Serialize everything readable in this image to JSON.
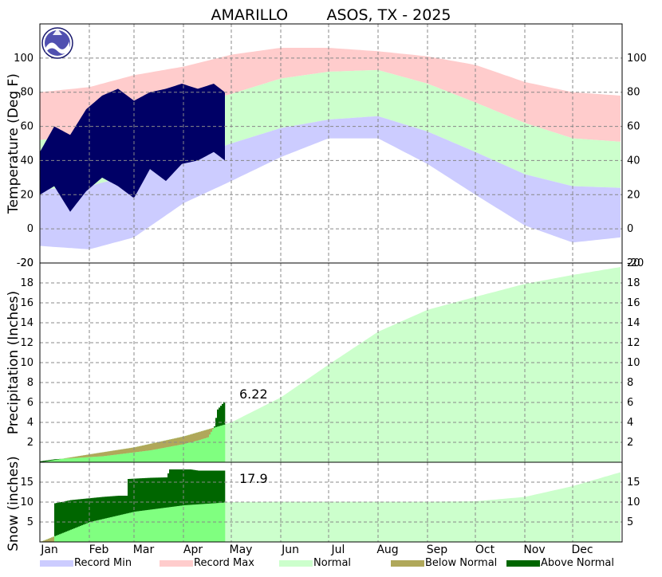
{
  "title": "AMARILLO        ASOS, TX - 2025",
  "colors": {
    "record_min": "#ccccff",
    "record_max": "#ffcccc",
    "normal": "#ccffcc",
    "below_normal": "#b0a85a",
    "above_normal": "#006600",
    "observed_precip": "#80ff80",
    "observed_temp": "#000066"
  },
  "months": [
    "Jan",
    "Feb",
    "Mar",
    "Apr",
    "May",
    "Jun",
    "Jul",
    "Aug",
    "Sep",
    "Oct",
    "Nov",
    "Dec"
  ],
  "legend": [
    "Record Min",
    "Record Max",
    "Normal",
    "Below Normal",
    "Above Normal"
  ],
  "noaa_logo": "noaa-logo",
  "chart_data": [
    {
      "type": "area",
      "panel": "temperature",
      "ylabel": "Temperature (Deg F)",
      "ylim": [
        -20,
        120
      ],
      "yticks": [
        -20,
        0,
        20,
        40,
        60,
        80,
        100
      ],
      "grid": true,
      "x_unit": "day of year",
      "series": [
        {
          "name": "Record Max",
          "x": [
            1,
            32,
            60,
            91,
            121,
            152,
            182,
            213,
            244,
            274,
            305,
            335,
            365
          ],
          "values": [
            80,
            83,
            90,
            95,
            102,
            106,
            106,
            104,
            101,
            96,
            86,
            80,
            78
          ]
        },
        {
          "name": "Normal",
          "kind": "high",
          "x": [
            1,
            32,
            60,
            91,
            121,
            152,
            182,
            213,
            244,
            274,
            305,
            335,
            365
          ],
          "values": [
            52,
            55,
            63,
            71,
            79,
            88,
            92,
            93,
            85,
            74,
            62,
            53,
            51
          ]
        },
        {
          "name": "Normal",
          "kind": "low",
          "x": [
            1,
            32,
            60,
            91,
            121,
            152,
            182,
            213,
            244,
            274,
            305,
            335,
            365
          ],
          "values": [
            23,
            25,
            32,
            40,
            50,
            59,
            64,
            66,
            57,
            45,
            32,
            25,
            24
          ]
        },
        {
          "name": "Record Min",
          "x": [
            1,
            32,
            60,
            91,
            121,
            152,
            182,
            213,
            244,
            274,
            305,
            335,
            365
          ],
          "values": [
            -10,
            -12,
            -5,
            15,
            28,
            42,
            53,
            53,
            38,
            20,
            2,
            -8,
            -5
          ]
        },
        {
          "name": "Observed",
          "kind": "range",
          "x": [
            1,
            10,
            20,
            30,
            40,
            50,
            60,
            70,
            80,
            90,
            100,
            110,
            117
          ],
          "high": [
            45,
            60,
            55,
            70,
            78,
            82,
            75,
            80,
            82,
            85,
            82,
            85,
            80
          ],
          "low": [
            20,
            25,
            10,
            22,
            30,
            25,
            18,
            35,
            28,
            38,
            40,
            45,
            40
          ]
        }
      ]
    },
    {
      "type": "area",
      "panel": "precipitation",
      "ylabel": "Precipitation (Inches)",
      "ylim": [
        0,
        20
      ],
      "yticks": [
        2,
        4,
        6,
        8,
        10,
        12,
        14,
        16,
        18,
        20
      ],
      "grid": true,
      "annotation": "6.22",
      "series": [
        {
          "name": "Normal",
          "x": [
            1,
            32,
            60,
            91,
            121,
            152,
            182,
            213,
            244,
            274,
            305,
            335,
            365
          ],
          "values": [
            0,
            0.8,
            1.5,
            2.6,
            4.0,
            6.5,
            9.8,
            13.1,
            15.3,
            16.6,
            17.9,
            18.8,
            19.6
          ]
        },
        {
          "name": "Observed",
          "x": [
            1,
            10,
            20,
            30,
            40,
            50,
            60,
            70,
            80,
            90,
            100,
            106,
            110,
            112,
            117
          ],
          "values": [
            0.1,
            0.3,
            0.4,
            0.5,
            0.6,
            0.8,
            1.0,
            1.2,
            1.5,
            1.8,
            2.2,
            2.5,
            3.6,
            5.3,
            6.22
          ]
        }
      ]
    },
    {
      "type": "area",
      "panel": "snow",
      "ylabel": "Snow (inches)",
      "ylim": [
        0,
        20
      ],
      "yticks": [
        5,
        10,
        15
      ],
      "grid": true,
      "annotation": "17.9",
      "series": [
        {
          "name": "Normal",
          "x": [
            1,
            32,
            60,
            91,
            121,
            152,
            182,
            213,
            244,
            274,
            305,
            335,
            365
          ],
          "values": [
            0,
            5.0,
            7.6,
            9.2,
            10.0,
            10.1,
            10.1,
            10.1,
            10.1,
            10.2,
            11.3,
            14.0,
            17.5
          ]
        },
        {
          "name": "Observed",
          "x": [
            1,
            9,
            10,
            20,
            30,
            40,
            50,
            55,
            56,
            70,
            80,
            82,
            95,
            100,
            117
          ],
          "values": [
            0,
            0,
            9.7,
            10.5,
            10.9,
            11.3,
            11.6,
            11.6,
            15.8,
            16.1,
            16.2,
            18.2,
            18.2,
            17.9,
            17.9
          ]
        }
      ]
    }
  ]
}
